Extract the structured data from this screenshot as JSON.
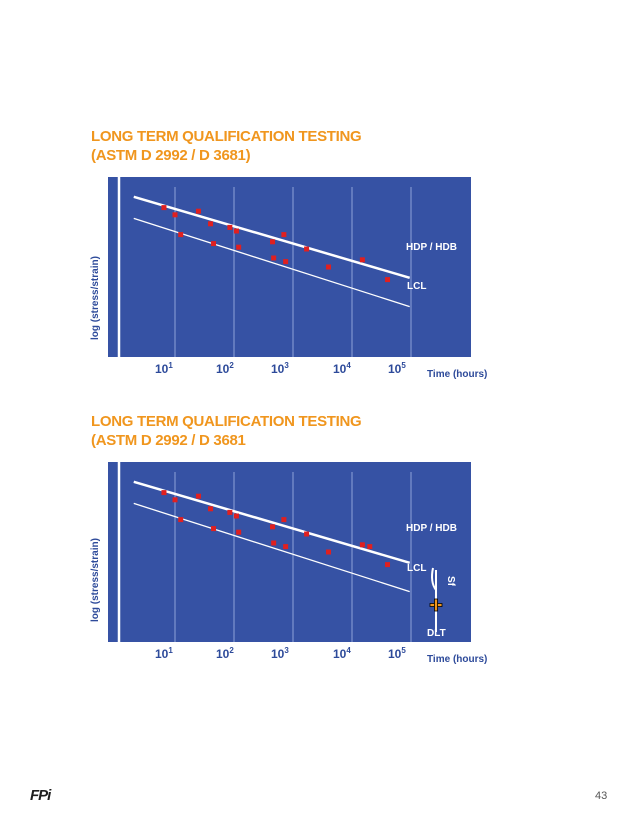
{
  "slides": [
    {
      "title_line1": "LONG TERM QUALIFICATION TESTING",
      "title_line2": "(ASTM D 2992 / D 3681)",
      "ylabel": "log (stress/strain)",
      "xlabel": "Time (hours)",
      "hdb_label": "HDP / HDB",
      "lcl_label": "LCL"
    },
    {
      "title_line1": "LONG TERM QUALIFICATION TESTING",
      "title_line2": "(ASTM D 2992 / D 3681",
      "ylabel": "log (stress/strain)",
      "xlabel": "Time (hours)",
      "hdb_label": "HDP / HDB",
      "lcl_label": "LCL",
      "sf_label": "Sf",
      "dlt_label": "DLT"
    }
  ],
  "xticks": [
    {
      "base": "10",
      "exp": "1"
    },
    {
      "base": "10",
      "exp": "2"
    },
    {
      "base": "10",
      "exp": "3"
    },
    {
      "base": "10",
      "exp": "4"
    },
    {
      "base": "10",
      "exp": "5"
    }
  ],
  "footer": {
    "logo": "FPi",
    "page_number": "43"
  },
  "colors": {
    "title": "#f0961e",
    "panel": "#3652a4",
    "points": "#e02020",
    "axis_text": "#2d4a9a"
  },
  "chart_data": [
    {
      "type": "scatter",
      "x_scale": "log",
      "xlabel": "Time (hours)",
      "ylabel": "log (stress/strain)",
      "x_ticks": [
        "10^1",
        "10^2",
        "10^3",
        "10^4",
        "10^5"
      ],
      "xlim": [
        10,
        1000000
      ],
      "ylim": [
        0,
        1
      ],
      "grid": "vertical",
      "points": [
        {
          "x": 65,
          "y": 0.83
        },
        {
          "x": 100,
          "y": 0.79
        },
        {
          "x": 125,
          "y": 0.68
        },
        {
          "x": 250,
          "y": 0.81
        },
        {
          "x": 400,
          "y": 0.74
        },
        {
          "x": 450,
          "y": 0.63
        },
        {
          "x": 850,
          "y": 0.72
        },
        {
          "x": 1100,
          "y": 0.7
        },
        {
          "x": 1200,
          "y": 0.61
        },
        {
          "x": 4500,
          "y": 0.64
        },
        {
          "x": 4700,
          "y": 0.55
        },
        {
          "x": 7000,
          "y": 0.68
        },
        {
          "x": 7500,
          "y": 0.53
        },
        {
          "x": 17000,
          "y": 0.6
        },
        {
          "x": 40000,
          "y": 0.5
        },
        {
          "x": 150000,
          "y": 0.54
        },
        {
          "x": 400000,
          "y": 0.43
        }
      ],
      "lines": [
        {
          "name": "HDP / HDB",
          "points": [
            [
              20,
              0.89
            ],
            [
              950000,
              0.44
            ]
          ]
        },
        {
          "name": "LCL",
          "points": [
            [
              20,
              0.77
            ],
            [
              950000,
              0.28
            ]
          ]
        }
      ]
    },
    {
      "type": "scatter",
      "x_scale": "log",
      "xlabel": "Time (hours)",
      "ylabel": "log (stress/strain)",
      "x_ticks": [
        "10^1",
        "10^2",
        "10^3",
        "10^4",
        "10^5"
      ],
      "xlim": [
        10,
        1000000
      ],
      "ylim": [
        0,
        1
      ],
      "grid": "vertical",
      "points": [
        {
          "x": 65,
          "y": 0.83
        },
        {
          "x": 100,
          "y": 0.79
        },
        {
          "x": 125,
          "y": 0.68
        },
        {
          "x": 250,
          "y": 0.81
        },
        {
          "x": 400,
          "y": 0.74
        },
        {
          "x": 450,
          "y": 0.63
        },
        {
          "x": 850,
          "y": 0.72
        },
        {
          "x": 1100,
          "y": 0.7
        },
        {
          "x": 1200,
          "y": 0.61
        },
        {
          "x": 4500,
          "y": 0.64
        },
        {
          "x": 4700,
          "y": 0.55
        },
        {
          "x": 7000,
          "y": 0.68
        },
        {
          "x": 7500,
          "y": 0.53
        },
        {
          "x": 17000,
          "y": 0.6
        },
        {
          "x": 40000,
          "y": 0.5
        },
        {
          "x": 150000,
          "y": 0.54
        },
        {
          "x": 200000,
          "y": 0.53
        },
        {
          "x": 400000,
          "y": 0.43
        }
      ],
      "lines": [
        {
          "name": "HDP / HDB",
          "points": [
            [
              20,
              0.89
            ],
            [
              950000,
              0.44
            ]
          ]
        },
        {
          "name": "LCL",
          "points": [
            [
              20,
              0.77
            ],
            [
              950000,
              0.28
            ]
          ]
        }
      ],
      "annotations": [
        {
          "label": "Sf",
          "type": "bracket",
          "x": 220000
        },
        {
          "label": "DLT",
          "type": "marker",
          "x": 220000
        }
      ]
    }
  ]
}
